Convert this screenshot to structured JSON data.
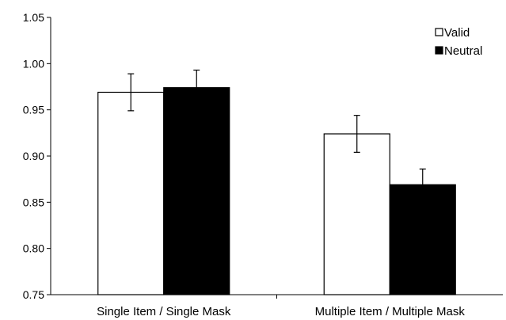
{
  "chart_data": {
    "type": "bar",
    "categories": [
      "Single Item / Single Mask",
      "Multiple Item / Multiple Mask"
    ],
    "series": [
      {
        "name": "Valid",
        "color": "#ffffff",
        "values": [
          0.969,
          0.924
        ],
        "error": [
          0.02,
          0.02
        ]
      },
      {
        "name": "Neutral",
        "color": "#000000",
        "values": [
          0.974,
          0.869
        ],
        "error": [
          0.019,
          0.017
        ]
      }
    ],
    "ylim": [
      0.75,
      1.05
    ],
    "yticks": [
      "0.75",
      "0.80",
      "0.85",
      "0.90",
      "0.95",
      "1.00",
      "1.05"
    ],
    "title": "",
    "xlabel": "",
    "ylabel": "",
    "legend_position": "top-right",
    "grid": false
  }
}
